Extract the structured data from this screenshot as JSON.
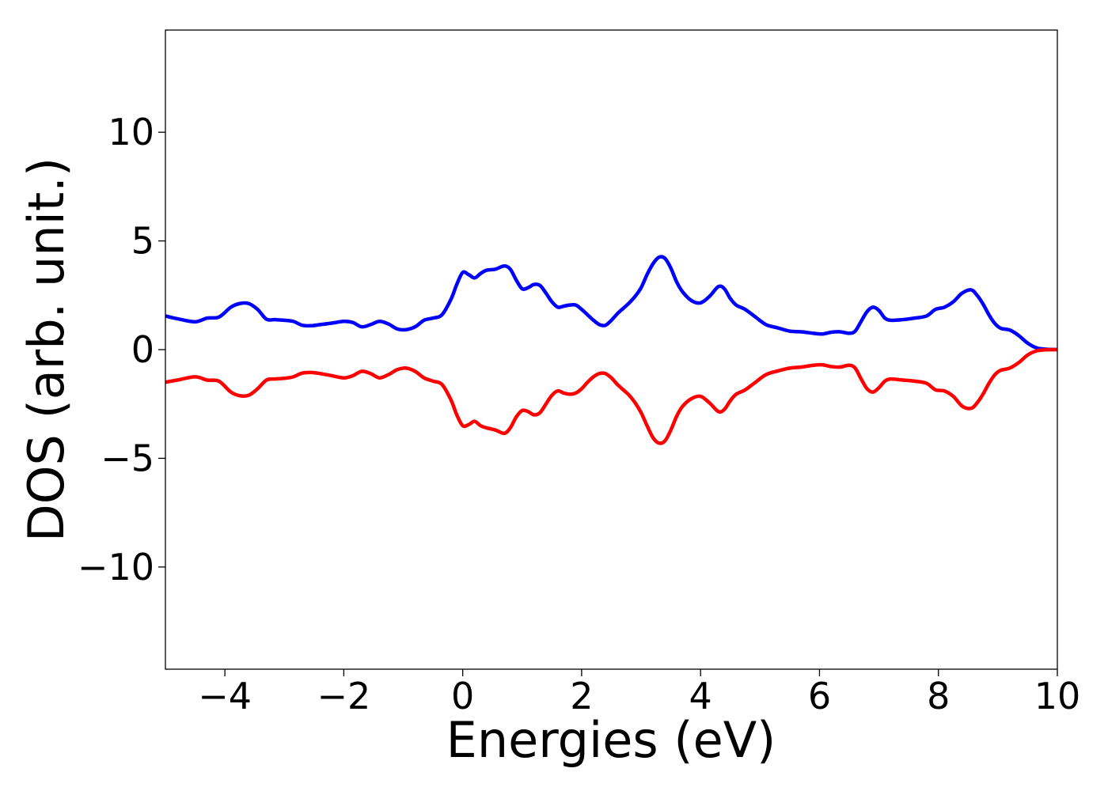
{
  "chart_data": {
    "type": "line",
    "title": "",
    "xlabel": "Energies (eV)",
    "ylabel": "DOS (arb. unit.)",
    "xlim": [
      -5,
      10
    ],
    "ylim": [
      -14.7,
      14.7
    ],
    "xticks": [
      -4,
      -2,
      0,
      2,
      4,
      6,
      8,
      10
    ],
    "yticks": [
      -10,
      -5,
      0,
      5,
      10
    ],
    "xtick_labels": [
      "−4",
      "−2",
      "0",
      "2",
      "4",
      "6",
      "8",
      "10"
    ],
    "ytick_labels": [
      "−10",
      "−5",
      "0",
      "5",
      "10"
    ],
    "grid": false,
    "legend": false,
    "series": [
      {
        "color": "#0000ff",
        "x": [
          -5.0,
          -4.8,
          -4.5,
          -4.3,
          -4.1,
          -3.9,
          -3.75,
          -3.6,
          -3.45,
          -3.3,
          -3.15,
          -3.0,
          -2.85,
          -2.7,
          -2.55,
          -2.4,
          -2.2,
          -2.0,
          -1.85,
          -1.7,
          -1.55,
          -1.4,
          -1.25,
          -1.1,
          -0.95,
          -0.8,
          -0.65,
          -0.5,
          -0.35,
          -0.2,
          -0.1,
          0.0,
          0.1,
          0.2,
          0.3,
          0.4,
          0.55,
          0.7,
          0.8,
          0.9,
          1.0,
          1.1,
          1.2,
          1.3,
          1.4,
          1.5,
          1.6,
          1.7,
          1.8,
          1.9,
          2.0,
          2.1,
          2.2,
          2.3,
          2.4,
          2.5,
          2.6,
          2.7,
          2.8,
          2.9,
          3.0,
          3.1,
          3.2,
          3.3,
          3.4,
          3.5,
          3.6,
          3.7,
          3.85,
          4.0,
          4.15,
          4.3,
          4.4,
          4.5,
          4.6,
          4.75,
          4.9,
          5.1,
          5.3,
          5.5,
          5.7,
          5.9,
          6.05,
          6.2,
          6.35,
          6.5,
          6.6,
          6.7,
          6.8,
          6.9,
          7.0,
          7.1,
          7.2,
          7.4,
          7.6,
          7.8,
          7.95,
          8.1,
          8.25,
          8.4,
          8.55,
          8.65,
          8.75,
          8.85,
          8.95,
          9.05,
          9.2,
          9.35,
          9.5,
          9.65,
          9.8,
          10.0
        ],
        "y": [
          1.55,
          1.42,
          1.28,
          1.45,
          1.5,
          1.95,
          2.12,
          2.12,
          1.85,
          1.4,
          1.38,
          1.35,
          1.3,
          1.12,
          1.1,
          1.15,
          1.22,
          1.3,
          1.25,
          1.05,
          1.15,
          1.3,
          1.18,
          0.95,
          0.92,
          1.05,
          1.35,
          1.45,
          1.6,
          2.3,
          3.0,
          3.55,
          3.45,
          3.3,
          3.5,
          3.65,
          3.7,
          3.85,
          3.7,
          3.2,
          2.8,
          2.85,
          3.0,
          2.95,
          2.6,
          2.2,
          1.95,
          2.0,
          2.05,
          2.05,
          1.85,
          1.6,
          1.35,
          1.15,
          1.12,
          1.35,
          1.65,
          1.9,
          2.15,
          2.45,
          2.85,
          3.45,
          3.95,
          4.25,
          4.2,
          3.75,
          3.1,
          2.65,
          2.25,
          2.15,
          2.45,
          2.9,
          2.8,
          2.35,
          2.05,
          1.85,
          1.55,
          1.15,
          1.0,
          0.85,
          0.82,
          0.75,
          0.72,
          0.8,
          0.82,
          0.75,
          0.85,
          1.3,
          1.75,
          1.95,
          1.8,
          1.45,
          1.35,
          1.38,
          1.45,
          1.55,
          1.85,
          1.95,
          2.2,
          2.6,
          2.75,
          2.5,
          2.1,
          1.6,
          1.2,
          0.98,
          0.9,
          0.65,
          0.3,
          0.08,
          0.02,
          0.0
        ]
      },
      {
        "color": "#ff0000",
        "x": [
          -5.0,
          -4.8,
          -4.5,
          -4.3,
          -4.1,
          -3.9,
          -3.75,
          -3.6,
          -3.45,
          -3.3,
          -3.15,
          -3.0,
          -2.85,
          -2.7,
          -2.55,
          -2.4,
          -2.2,
          -2.0,
          -1.85,
          -1.7,
          -1.55,
          -1.4,
          -1.25,
          -1.1,
          -0.95,
          -0.8,
          -0.65,
          -0.5,
          -0.35,
          -0.2,
          -0.1,
          0.0,
          0.1,
          0.2,
          0.3,
          0.4,
          0.55,
          0.7,
          0.8,
          0.9,
          1.0,
          1.1,
          1.2,
          1.3,
          1.4,
          1.5,
          1.6,
          1.7,
          1.8,
          1.9,
          2.0,
          2.1,
          2.2,
          2.3,
          2.4,
          2.5,
          2.6,
          2.7,
          2.8,
          2.9,
          3.0,
          3.1,
          3.2,
          3.3,
          3.4,
          3.5,
          3.6,
          3.7,
          3.85,
          4.0,
          4.15,
          4.3,
          4.4,
          4.5,
          4.6,
          4.75,
          4.9,
          5.1,
          5.3,
          5.5,
          5.7,
          5.9,
          6.05,
          6.2,
          6.35,
          6.5,
          6.6,
          6.7,
          6.8,
          6.9,
          7.0,
          7.1,
          7.2,
          7.4,
          7.6,
          7.8,
          7.95,
          8.1,
          8.25,
          8.4,
          8.55,
          8.65,
          8.75,
          8.85,
          8.95,
          9.05,
          9.2,
          9.35,
          9.5,
          9.65,
          9.8,
          10.0
        ],
        "y": [
          -1.5,
          -1.4,
          -1.25,
          -1.4,
          -1.45,
          -1.95,
          -2.12,
          -2.1,
          -1.8,
          -1.4,
          -1.35,
          -1.32,
          -1.25,
          -1.08,
          -1.05,
          -1.1,
          -1.2,
          -1.3,
          -1.2,
          -1.0,
          -1.1,
          -1.3,
          -1.15,
          -0.92,
          -0.85,
          -1.0,
          -1.3,
          -1.45,
          -1.6,
          -2.3,
          -3.0,
          -3.5,
          -3.45,
          -3.3,
          -3.5,
          -3.6,
          -3.7,
          -3.85,
          -3.6,
          -3.1,
          -2.8,
          -2.85,
          -3.0,
          -2.9,
          -2.5,
          -2.1,
          -1.9,
          -2.0,
          -2.05,
          -2.0,
          -1.8,
          -1.5,
          -1.25,
          -1.1,
          -1.1,
          -1.3,
          -1.6,
          -1.85,
          -2.1,
          -2.45,
          -2.9,
          -3.5,
          -4.05,
          -4.3,
          -4.2,
          -3.7,
          -3.05,
          -2.6,
          -2.25,
          -2.15,
          -2.45,
          -2.85,
          -2.75,
          -2.35,
          -2.05,
          -1.85,
          -1.55,
          -1.15,
          -0.98,
          -0.85,
          -0.8,
          -0.72,
          -0.7,
          -0.78,
          -0.8,
          -0.72,
          -0.85,
          -1.35,
          -1.8,
          -1.95,
          -1.75,
          -1.45,
          -1.35,
          -1.4,
          -1.45,
          -1.55,
          -1.85,
          -1.9,
          -2.15,
          -2.6,
          -2.7,
          -2.45,
          -2.05,
          -1.55,
          -1.15,
          -0.95,
          -0.85,
          -0.6,
          -0.25,
          -0.06,
          -0.01,
          0.0
        ]
      }
    ]
  }
}
